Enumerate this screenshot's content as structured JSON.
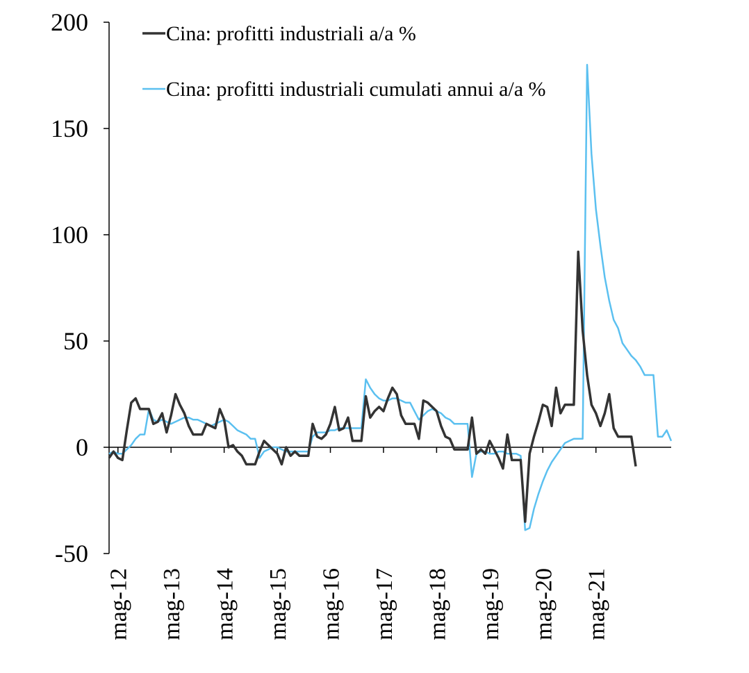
{
  "chart_data": {
    "type": "line",
    "title": "",
    "xlabel": "",
    "ylabel": "",
    "ylim": [
      -50,
      200
    ],
    "y_ticks": [
      "200",
      "150",
      "100",
      "50",
      "0",
      "-50"
    ],
    "y_tick_values": [
      200,
      150,
      100,
      50,
      0,
      -50
    ],
    "x_tick_labels": [
      "mag-12",
      "mag-13",
      "mag-14",
      "mag-15",
      "mag-16",
      "mag-17",
      "mag-18",
      "mag-19",
      "mag-20",
      "mag-21"
    ],
    "x_start": "mar-12",
    "grid": false,
    "legend_position": "top-left",
    "series": [
      {
        "name": "Cina: profitti industriali a/a %",
        "color": "#333333",
        "values": [
          -5,
          -2,
          -5,
          -6,
          8,
          21,
          23,
          18,
          18,
          18,
          11,
          12,
          16,
          7,
          15,
          25,
          20,
          16,
          10,
          6,
          6,
          6,
          11,
          10,
          9,
          18,
          13,
          0,
          1,
          -2,
          -4,
          -8,
          -8,
          -8,
          -2,
          3,
          1,
          -1,
          -3,
          -8,
          0,
          -4,
          -2,
          -4,
          -4,
          -4,
          11,
          5,
          4,
          6,
          11,
          19,
          8,
          9,
          14,
          3,
          3,
          3,
          24,
          14,
          17,
          19,
          17,
          23,
          28,
          25,
          15,
          11,
          11,
          11,
          4,
          22,
          21,
          19,
          17,
          10,
          5,
          4,
          -1,
          -1,
          -1,
          -1,
          14,
          -3,
          -1,
          -3,
          3,
          -1,
          -5,
          -10,
          6,
          -6,
          -6,
          -6,
          -35,
          -3,
          5,
          12,
          20,
          19,
          10,
          28,
          16,
          20,
          20,
          20,
          92,
          55,
          34,
          20,
          16,
          10,
          16,
          25,
          9,
          5,
          5,
          5,
          5,
          -9
        ],
        "color_name": "dark-gray"
      },
      {
        "name": "Cina: profitti industriali cumulati annui a/a %",
        "color": "#5bc0f0",
        "values": [
          -3,
          -2,
          -3,
          -3,
          -1,
          1,
          4,
          6,
          6,
          18,
          13,
          12,
          13,
          12,
          11,
          12,
          13,
          14,
          14,
          13,
          13,
          12,
          11,
          10,
          11,
          12,
          13,
          12,
          10,
          8,
          7,
          6,
          4,
          4,
          -5,
          -2,
          -1,
          0,
          0,
          -1,
          -2,
          -2,
          -2,
          -2,
          -2,
          -2,
          5,
          7,
          7,
          7,
          8,
          8,
          9,
          9,
          9,
          9,
          9,
          9,
          32,
          28,
          25,
          23,
          22,
          22,
          23,
          23,
          22,
          21,
          21,
          17,
          13,
          15,
          17,
          18,
          17,
          16,
          14,
          13,
          11,
          11,
          11,
          11,
          -14,
          -3,
          -2,
          -2,
          -3,
          -3,
          -2,
          -2,
          -3,
          -3,
          -3,
          -4,
          -39,
          -38,
          -29,
          -22,
          -16,
          -11,
          -7,
          -4,
          -1,
          2,
          3,
          4,
          4,
          4,
          180,
          138,
          112,
          95,
          80,
          69,
          60,
          56,
          49,
          46,
          43,
          41,
          38,
          34,
          34,
          34,
          5,
          5,
          8,
          3
        ]
      }
    ]
  }
}
